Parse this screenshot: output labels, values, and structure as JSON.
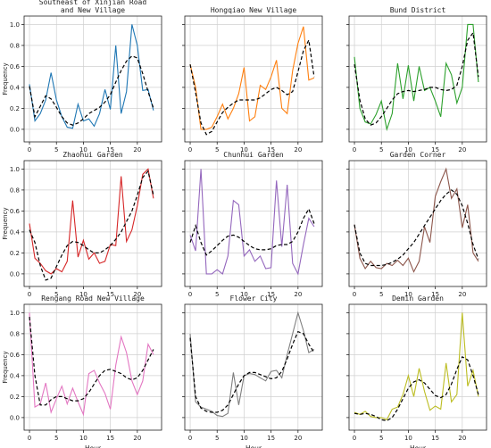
{
  "figure": {
    "ylabel": "Frequency",
    "xlabel": "Hour"
  },
  "chart_data": [
    {
      "type": "line",
      "title": "Southeast of Xinjian Road and New Village",
      "title_lines": [
        "Southeast of Xinjian Road",
        "and New Village"
      ],
      "color": "#1f77b4",
      "xlim": [
        -1,
        24.5
      ],
      "ylim": [
        -0.12,
        1.08
      ],
      "xticks": [
        0,
        5,
        10,
        15,
        20
      ],
      "yticks": [
        0.0,
        0.2,
        0.4,
        0.6,
        0.8,
        1.0
      ],
      "x": [
        0,
        1,
        2,
        3,
        4,
        5,
        6,
        7,
        8,
        9,
        10,
        11,
        12,
        13,
        14,
        15,
        16,
        17,
        18,
        19,
        20,
        21,
        22,
        23
      ],
      "values": [
        0.43,
        0.08,
        0.15,
        0.28,
        0.54,
        0.28,
        0.12,
        0.02,
        0.01,
        0.24,
        0.08,
        0.1,
        0.03,
        0.15,
        0.38,
        0.19,
        0.8,
        0.15,
        0.36,
        1.0,
        0.8,
        0.37,
        0.38,
        0.18
      ],
      "trend": [
        0.41,
        0.12,
        0.22,
        0.32,
        0.29,
        0.21,
        0.12,
        0.06,
        0.04,
        0.06,
        0.1,
        0.15,
        0.18,
        0.21,
        0.26,
        0.33,
        0.45,
        0.56,
        0.65,
        0.7,
        0.68,
        0.53,
        0.36,
        0.2
      ]
    },
    {
      "type": "line",
      "title": "Hongqiao New Village",
      "title_lines": [
        "Hongqiao New Village"
      ],
      "color": "#ff7f0e",
      "xlim": [
        -1,
        24.5
      ],
      "ylim": [
        -0.12,
        1.08
      ],
      "xticks": [
        0,
        5,
        10,
        15,
        20
      ],
      "yticks": [
        0.0,
        0.2,
        0.4,
        0.6,
        0.8,
        1.0
      ],
      "x": [
        0,
        1,
        2,
        3,
        4,
        5,
        6,
        7,
        8,
        9,
        10,
        11,
        12,
        13,
        14,
        15,
        16,
        17,
        18,
        19,
        20,
        21,
        22,
        23
      ],
      "values": [
        0.62,
        0.4,
        0.0,
        0.0,
        0.02,
        0.12,
        0.24,
        0.1,
        0.2,
        0.34,
        0.59,
        0.08,
        0.12,
        0.42,
        0.38,
        0.5,
        0.66,
        0.2,
        0.15,
        0.56,
        0.82,
        0.98,
        0.47,
        0.49
      ],
      "trend": [
        0.62,
        0.35,
        0.06,
        -0.05,
        -0.02,
        0.07,
        0.16,
        0.21,
        0.25,
        0.28,
        0.28,
        0.28,
        0.28,
        0.3,
        0.34,
        0.38,
        0.4,
        0.37,
        0.33,
        0.36,
        0.55,
        0.75,
        0.85,
        0.5
      ]
    },
    {
      "type": "line",
      "title": "Bund District",
      "title_lines": [
        "Bund District"
      ],
      "color": "#2ca02c",
      "xlim": [
        -1,
        24.5
      ],
      "ylim": [
        -0.12,
        1.08
      ],
      "xticks": [
        0,
        5,
        10,
        15,
        20
      ],
      "yticks": [
        0.0,
        0.2,
        0.4,
        0.6,
        0.8,
        1.0
      ],
      "x": [
        0,
        1,
        2,
        3,
        4,
        5,
        6,
        7,
        8,
        9,
        10,
        11,
        12,
        13,
        14,
        15,
        16,
        17,
        18,
        19,
        20,
        21,
        22,
        23
      ],
      "values": [
        0.69,
        0.2,
        0.07,
        0.05,
        0.14,
        0.27,
        0.0,
        0.15,
        0.63,
        0.29,
        0.61,
        0.27,
        0.6,
        0.37,
        0.4,
        0.27,
        0.12,
        0.63,
        0.52,
        0.25,
        0.4,
        1.0,
        1.0,
        0.45
      ],
      "trend": [
        0.62,
        0.28,
        0.1,
        0.04,
        0.06,
        0.12,
        0.2,
        0.28,
        0.34,
        0.36,
        0.37,
        0.36,
        0.37,
        0.38,
        0.4,
        0.4,
        0.38,
        0.37,
        0.38,
        0.42,
        0.6,
        0.85,
        0.92,
        0.5
      ]
    },
    {
      "type": "line",
      "title": "Zhaohui Garden",
      "title_lines": [
        "Zhaohui Garden"
      ],
      "color": "#d62728",
      "xlim": [
        -1,
        24.5
      ],
      "ylim": [
        -0.12,
        1.08
      ],
      "xticks": [
        0,
        5,
        10,
        15,
        20
      ],
      "yticks": [
        0.0,
        0.2,
        0.4,
        0.6,
        0.8,
        1.0
      ],
      "x": [
        0,
        1,
        2,
        3,
        4,
        5,
        6,
        7,
        8,
        9,
        10,
        11,
        12,
        13,
        14,
        15,
        16,
        17,
        18,
        19,
        20,
        21,
        22,
        23
      ],
      "values": [
        0.48,
        0.15,
        0.1,
        0.03,
        0.0,
        0.05,
        0.02,
        0.12,
        0.7,
        0.16,
        0.32,
        0.14,
        0.2,
        0.1,
        0.12,
        0.28,
        0.27,
        0.93,
        0.31,
        0.42,
        0.65,
        0.95,
        1.0,
        0.72
      ],
      "trend": [
        0.42,
        0.3,
        0.08,
        -0.06,
        -0.04,
        0.07,
        0.18,
        0.27,
        0.31,
        0.3,
        0.27,
        0.23,
        0.2,
        0.2,
        0.23,
        0.27,
        0.33,
        0.4,
        0.5,
        0.6,
        0.75,
        0.92,
        0.98,
        0.75
      ]
    },
    {
      "type": "line",
      "title": "Chunhui Garden",
      "title_lines": [
        "Chunhui Garden"
      ],
      "color": "#9467bd",
      "xlim": [
        -1,
        24.5
      ],
      "ylim": [
        -0.12,
        1.08
      ],
      "xticks": [
        0,
        5,
        10,
        15,
        20
      ],
      "yticks": [
        0.0,
        0.2,
        0.4,
        0.6,
        0.8,
        1.0
      ],
      "x": [
        0,
        1,
        2,
        3,
        4,
        5,
        6,
        7,
        8,
        9,
        10,
        11,
        12,
        13,
        14,
        15,
        16,
        17,
        18,
        19,
        20,
        21,
        22,
        23
      ],
      "values": [
        0.37,
        0.22,
        1.0,
        0.0,
        0.0,
        0.04,
        0.0,
        0.17,
        0.7,
        0.66,
        0.17,
        0.23,
        0.12,
        0.17,
        0.05,
        0.06,
        0.89,
        0.26,
        0.85,
        0.1,
        0.0,
        0.28,
        0.53,
        0.45
      ],
      "trend": [
        0.3,
        0.46,
        0.3,
        0.18,
        0.22,
        0.27,
        0.32,
        0.36,
        0.37,
        0.35,
        0.31,
        0.27,
        0.24,
        0.23,
        0.23,
        0.24,
        0.27,
        0.28,
        0.28,
        0.31,
        0.4,
        0.53,
        0.62,
        0.48
      ]
    },
    {
      "type": "line",
      "title": "Garden Corner",
      "title_lines": [
        "Garden Corner"
      ],
      "color": "#8c564b",
      "xlim": [
        -1,
        24.5
      ],
      "ylim": [
        -0.12,
        1.08
      ],
      "xticks": [
        0,
        5,
        10,
        15,
        20
      ],
      "yticks": [
        0.0,
        0.2,
        0.4,
        0.6,
        0.8,
        1.0
      ],
      "x": [
        0,
        1,
        2,
        3,
        4,
        5,
        6,
        7,
        8,
        9,
        10,
        11,
        12,
        13,
        14,
        15,
        16,
        17,
        18,
        19,
        20,
        21,
        22,
        23
      ],
      "values": [
        0.47,
        0.15,
        0.05,
        0.12,
        0.06,
        0.05,
        0.1,
        0.08,
        0.13,
        0.08,
        0.15,
        0.02,
        0.12,
        0.45,
        0.3,
        0.74,
        0.88,
        1.0,
        0.72,
        0.81,
        0.44,
        0.66,
        0.2,
        0.12
      ],
      "trend": [
        0.47,
        0.2,
        0.1,
        0.08,
        0.08,
        0.08,
        0.09,
        0.11,
        0.14,
        0.18,
        0.24,
        0.3,
        0.38,
        0.46,
        0.54,
        0.62,
        0.7,
        0.76,
        0.8,
        0.76,
        0.65,
        0.48,
        0.28,
        0.14
      ]
    },
    {
      "type": "line",
      "title": "Rengang Road New Village",
      "title_lines": [
        "Rengang Road New Village"
      ],
      "color": "#e377c2",
      "xlim": [
        -1,
        24.5
      ],
      "ylim": [
        -0.12,
        1.08
      ],
      "xticks": [
        0,
        5,
        10,
        15,
        20
      ],
      "yticks": [
        0.0,
        0.2,
        0.4,
        0.6,
        0.8,
        1.0
      ],
      "x": [
        0,
        1,
        2,
        3,
        4,
        5,
        6,
        7,
        8,
        9,
        10,
        11,
        12,
        13,
        14,
        15,
        16,
        17,
        18,
        19,
        20,
        21,
        22,
        23
      ],
      "values": [
        1.0,
        0.1,
        0.13,
        0.33,
        0.05,
        0.18,
        0.3,
        0.13,
        0.28,
        0.15,
        0.03,
        0.42,
        0.45,
        0.33,
        0.23,
        0.08,
        0.5,
        0.77,
        0.62,
        0.35,
        0.22,
        0.35,
        0.7,
        0.6
      ],
      "trend": [
        0.96,
        0.4,
        0.12,
        0.12,
        0.17,
        0.2,
        0.2,
        0.18,
        0.16,
        0.16,
        0.18,
        0.24,
        0.32,
        0.4,
        0.45,
        0.46,
        0.44,
        0.42,
        0.38,
        0.36,
        0.38,
        0.45,
        0.55,
        0.65
      ]
    },
    {
      "type": "line",
      "title": "Flower City",
      "title_lines": [
        "Flower City"
      ],
      "color": "#7f7f7f",
      "xlim": [
        -1,
        24.5
      ],
      "ylim": [
        -0.12,
        1.08
      ],
      "xticks": [
        0,
        5,
        10,
        15,
        20
      ],
      "yticks": [
        0.0,
        0.2,
        0.4,
        0.6,
        0.8,
        1.0
      ],
      "x": [
        0,
        1,
        2,
        3,
        4,
        5,
        6,
        7,
        8,
        9,
        10,
        11,
        12,
        13,
        14,
        15,
        16,
        17,
        18,
        19,
        20,
        21,
        22,
        23
      ],
      "values": [
        0.8,
        0.15,
        0.1,
        0.08,
        0.06,
        0.02,
        0.01,
        0.04,
        0.43,
        0.12,
        0.4,
        0.42,
        0.41,
        0.38,
        0.35,
        0.44,
        0.45,
        0.38,
        0.6,
        0.8,
        1.0,
        0.83,
        0.62,
        0.65
      ],
      "trend": [
        0.76,
        0.2,
        0.09,
        0.06,
        0.05,
        0.05,
        0.07,
        0.12,
        0.22,
        0.32,
        0.4,
        0.43,
        0.43,
        0.41,
        0.39,
        0.37,
        0.38,
        0.44,
        0.56,
        0.7,
        0.82,
        0.8,
        0.7,
        0.62
      ]
    },
    {
      "type": "line",
      "title": "Demin Garden",
      "title_lines": [
        "Demin Garden"
      ],
      "color": "#bcbd22",
      "xlim": [
        -1,
        24.5
      ],
      "ylim": [
        -0.12,
        1.08
      ],
      "xticks": [
        0,
        5,
        10,
        15,
        20
      ],
      "yticks": [
        0.0,
        0.2,
        0.4,
        0.6,
        0.8,
        1.0
      ],
      "x": [
        0,
        1,
        2,
        3,
        4,
        5,
        6,
        7,
        8,
        9,
        10,
        11,
        12,
        13,
        14,
        15,
        16,
        17,
        18,
        19,
        20,
        21,
        22,
        23
      ],
      "values": [
        0.05,
        0.03,
        0.06,
        0.01,
        0.0,
        0.0,
        -0.02,
        0.08,
        0.1,
        0.22,
        0.4,
        0.2,
        0.47,
        0.25,
        0.07,
        0.11,
        0.08,
        0.52,
        0.15,
        0.22,
        1.0,
        0.3,
        0.45,
        0.2
      ],
      "trend": [
        0.04,
        0.03,
        0.04,
        0.03,
        0.01,
        -0.02,
        -0.03,
        0.0,
        0.08,
        0.18,
        0.28,
        0.34,
        0.36,
        0.33,
        0.27,
        0.21,
        0.19,
        0.22,
        0.32,
        0.46,
        0.58,
        0.55,
        0.4,
        0.22
      ]
    }
  ]
}
